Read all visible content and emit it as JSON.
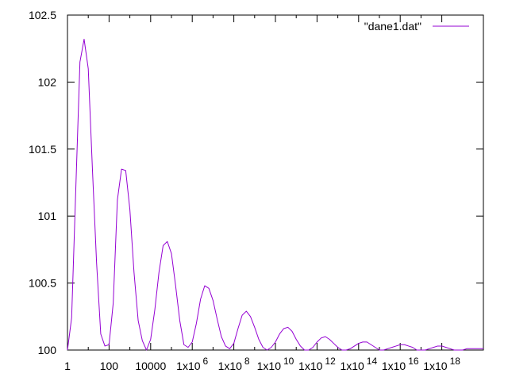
{
  "chart_data": {
    "type": "line",
    "title": "",
    "xlabel": "",
    "ylabel": "",
    "x_scale": "log10",
    "xlim_log10": [
      0,
      20
    ],
    "ylim": [
      100,
      102.5
    ],
    "y_ticks": [
      100,
      100.5,
      101,
      101.5,
      102,
      102.5
    ],
    "y_tick_labels": [
      "100",
      "100.5",
      "101",
      "101.5",
      "102",
      "102.5"
    ],
    "x_ticks_log10": [
      0,
      2,
      4,
      6,
      8,
      10,
      12,
      14,
      16,
      18
    ],
    "x_tick_labels": [
      {
        "base": "1",
        "exp": ""
      },
      {
        "base": "100",
        "exp": ""
      },
      {
        "base": "10000",
        "exp": ""
      },
      {
        "base": "1x10",
        "exp": "6"
      },
      {
        "base": "1x10",
        "exp": "8"
      },
      {
        "base": "1x10",
        "exp": "10"
      },
      {
        "base": "1x10",
        "exp": "12"
      },
      {
        "base": "1x10",
        "exp": "14"
      },
      {
        "base": "1x10",
        "exp": "16"
      },
      {
        "base": "1x10",
        "exp": "18"
      }
    ],
    "grid": false,
    "legend": {
      "position": "top-right",
      "entries": [
        "\"dane1.dat\""
      ]
    },
    "series": [
      {
        "name": "\"dane1.dat\"",
        "color": "#9400d3",
        "x_log10": [
          0.0,
          0.2,
          0.4,
          0.6,
          0.8,
          1.0,
          1.2,
          1.4,
          1.6,
          1.8,
          2.0,
          2.2,
          2.4,
          2.6,
          2.8,
          3.0,
          3.2,
          3.4,
          3.6,
          3.8,
          4.0,
          4.2,
          4.4,
          4.6,
          4.8,
          5.0,
          5.2,
          5.4,
          5.6,
          5.8,
          6.0,
          6.2,
          6.4,
          6.6,
          6.8,
          7.0,
          7.2,
          7.4,
          7.6,
          7.8,
          8.0,
          8.2,
          8.4,
          8.6,
          8.8,
          9.0,
          9.2,
          9.4,
          9.6,
          9.8,
          10.0,
          10.2,
          10.4,
          10.6,
          10.8,
          11.0,
          11.2,
          11.4,
          11.6,
          11.8,
          12.0,
          12.2,
          12.4,
          12.6,
          12.8,
          13.0,
          13.2,
          13.4,
          13.6,
          13.8,
          14.0,
          14.2,
          14.4,
          14.6,
          14.8,
          15.0,
          15.2,
          15.4,
          15.6,
          15.8,
          16.0,
          16.2,
          16.4,
          16.6,
          16.8,
          17.0,
          17.2,
          17.4,
          17.6,
          17.8,
          18.0,
          18.2,
          18.4,
          18.6,
          18.8,
          19.0,
          19.2,
          19.4,
          19.6,
          19.8,
          20.0
        ],
        "y": [
          100.0,
          100.24,
          101.2,
          102.15,
          102.32,
          102.1,
          101.35,
          100.65,
          100.12,
          100.03,
          100.04,
          100.35,
          101.12,
          101.35,
          101.34,
          101.05,
          100.58,
          100.22,
          100.07,
          100.0,
          100.08,
          100.3,
          100.58,
          100.78,
          100.81,
          100.72,
          100.48,
          100.22,
          100.04,
          100.02,
          100.06,
          100.2,
          100.38,
          100.48,
          100.46,
          100.37,
          100.23,
          100.1,
          100.03,
          100.01,
          100.05,
          100.16,
          100.26,
          100.29,
          100.25,
          100.17,
          100.08,
          100.02,
          100.0,
          100.02,
          100.06,
          100.12,
          100.16,
          100.17,
          100.14,
          100.08,
          100.03,
          100.0,
          100.0,
          100.02,
          100.06,
          100.09,
          100.1,
          100.08,
          100.05,
          100.02,
          100.0,
          100.0,
          100.01,
          100.03,
          100.05,
          100.06,
          100.06,
          100.04,
          100.02,
          100.0,
          100.0,
          100.01,
          100.02,
          100.03,
          100.04,
          100.04,
          100.03,
          100.02,
          100.0,
          100.0,
          100.0,
          100.01,
          100.02,
          100.03,
          100.03,
          100.02,
          100.01,
          100.0,
          100.0,
          100.0,
          100.01,
          100.01,
          100.01,
          100.01,
          100.01
        ]
      }
    ]
  }
}
